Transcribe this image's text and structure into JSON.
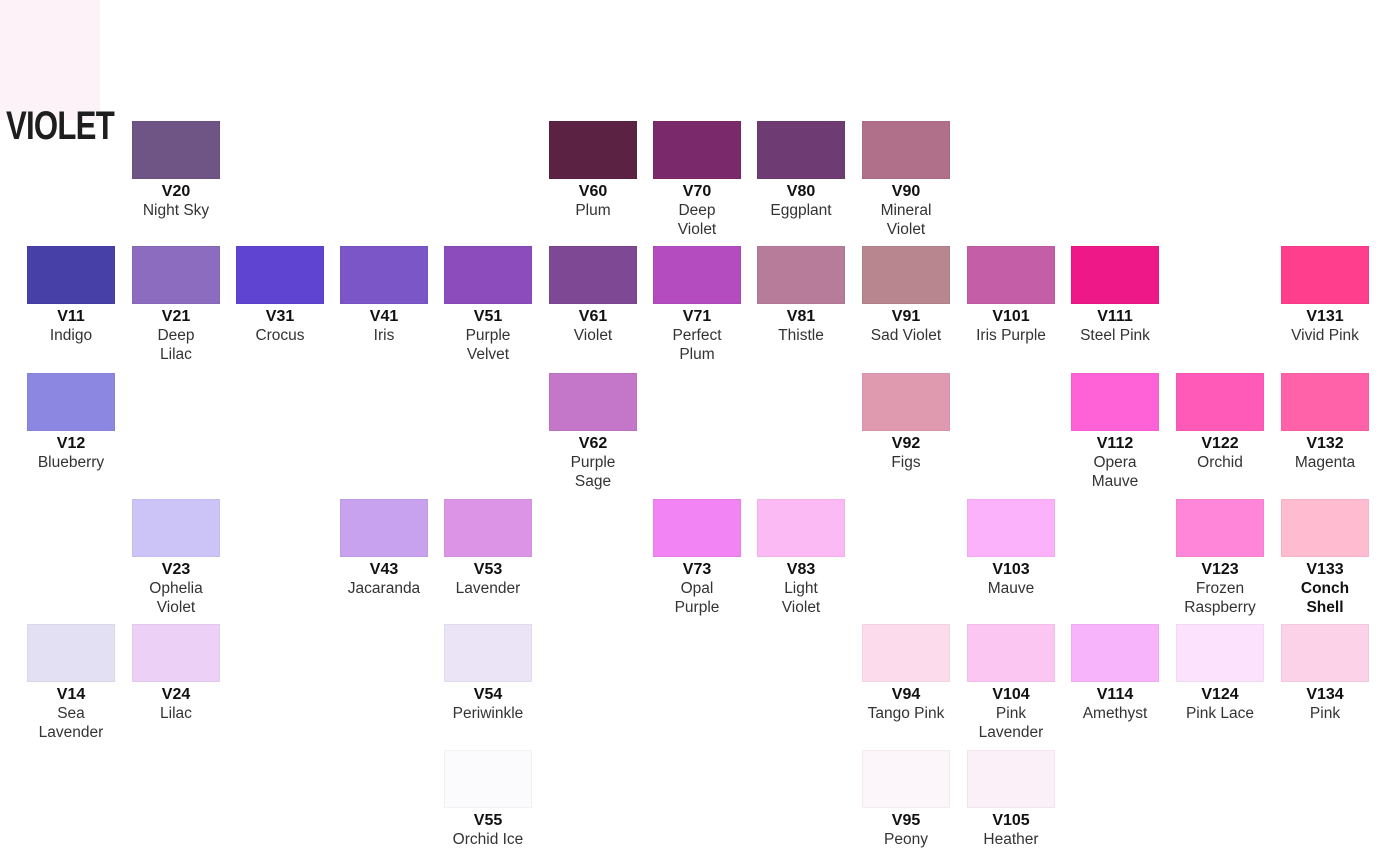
{
  "title": "VIOLET",
  "swatches": [
    {
      "code": "V20",
      "name": "Night Sky",
      "color": "#6e5585"
    },
    {
      "code": "V60",
      "name": "Plum",
      "color": "#5b2244"
    },
    {
      "code": "V70",
      "name": "Deep Violet",
      "color": "#7a2a6a"
    },
    {
      "code": "V80",
      "name": "Eggplant",
      "color": "#6e3c72"
    },
    {
      "code": "V90",
      "name": "Mineral Violet",
      "color": "#b0708a"
    },
    {
      "code": "V11",
      "name": "Indigo",
      "color": "#4740a6"
    },
    {
      "code": "V21",
      "name": "Deep Lilac",
      "color": "#8b6cbe"
    },
    {
      "code": "V31",
      "name": "Crocus",
      "color": "#5e44d0"
    },
    {
      "code": "V41",
      "name": "Iris",
      "color": "#7a56c6"
    },
    {
      "code": "V51",
      "name": "Purple Velvet",
      "color": "#8c4cbc"
    },
    {
      "code": "V61",
      "name": "Violet",
      "color": "#7e4894"
    },
    {
      "code": "V71",
      "name": "Perfect Plum",
      "color": "#b44cc0"
    },
    {
      "code": "V81",
      "name": "Thistle",
      "color": "#b77c9a"
    },
    {
      "code": "V91",
      "name": "Sad Violet",
      "color": "#b8868e"
    },
    {
      "code": "V101",
      "name": "Iris Purple",
      "color": "#c45ea6"
    },
    {
      "code": "V111",
      "name": "Steel Pink",
      "color": "#ee1888"
    },
    {
      "code": "V131",
      "name": "Vivid Pink",
      "color": "#ff3e8e"
    },
    {
      "code": "V12",
      "name": "Blueberry",
      "color": "#8c88e2"
    },
    {
      "code": "V62",
      "name": "Purple Sage",
      "color": "#c476c8"
    },
    {
      "code": "V92",
      "name": "Figs",
      "color": "#e09ab0"
    },
    {
      "code": "V112",
      "name": "Opera Mauve",
      "color": "#ff62d6"
    },
    {
      "code": "V122",
      "name": "Orchid",
      "color": "#ff5ab8"
    },
    {
      "code": "V132",
      "name": "Magenta",
      "color": "#ff62a8"
    },
    {
      "code": "V23",
      "name": "Ophelia Violet",
      "color": "#ccc4f6"
    },
    {
      "code": "V43",
      "name": "Jacaranda",
      "color": "#c8a2ee"
    },
    {
      "code": "V53",
      "name": "Lavender",
      "color": "#dc94e6"
    },
    {
      "code": "V73",
      "name": "Opal Purple",
      "color": "#f284f4"
    },
    {
      "code": "V83",
      "name": "Light Violet",
      "color": "#fbbaf4"
    },
    {
      "code": "V103",
      "name": "Mauve",
      "color": "#fcb2fa"
    },
    {
      "code": "V123",
      "name": "Frozen Raspberry",
      "color": "#ff86d8"
    },
    {
      "code": "V133",
      "name": "Conch Shell",
      "color": "#ffbcd0"
    },
    {
      "code": "V14",
      "name": "Sea Lavender",
      "color": "#e2e0f2"
    },
    {
      "code": "V24",
      "name": "Lilac",
      "color": "#ecd0f6"
    },
    {
      "code": "V54",
      "name": "Periwinkle",
      "color": "#eae4f6"
    },
    {
      "code": "V94",
      "name": "Tango Pink",
      "color": "#fcdcec"
    },
    {
      "code": "V104",
      "name": "Pink Lavender",
      "color": "#fcc6f2"
    },
    {
      "code": "V114",
      "name": "Amethyst",
      "color": "#f8b4fa"
    },
    {
      "code": "V124",
      "name": "Pink Lace",
      "color": "#fce2fc"
    },
    {
      "code": "V134",
      "name": "Pink",
      "color": "#fcd2e8"
    },
    {
      "code": "V55",
      "name": "Orchid Ice",
      "color": "#fbfafc"
    },
    {
      "code": "V95",
      "name": "Peony",
      "color": "#fcf6fa"
    },
    {
      "code": "V105",
      "name": "Heather",
      "color": "#fbeff8"
    }
  ]
}
